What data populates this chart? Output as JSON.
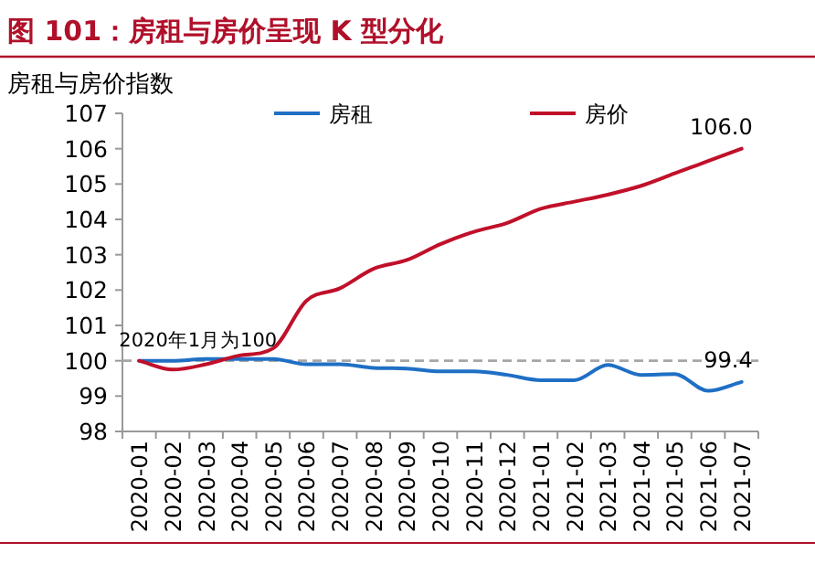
{
  "chart_data": {
    "type": "line",
    "title": "图 101：房租与房价呈现 K 型分化",
    "ylabel": "房租与房价指数",
    "categories": [
      "2020-01",
      "2020-02",
      "2020-03",
      "2020-04",
      "2020-05",
      "2020-06",
      "2020-07",
      "2020-08",
      "2020-09",
      "2020-10",
      "2020-11",
      "2020-12",
      "2021-01",
      "2021-02",
      "2021-03",
      "2021-04",
      "2021-05",
      "2021-06",
      "2021-07"
    ],
    "series": [
      {
        "name": "房租",
        "color": "#1f6fc5",
        "values": [
          100,
          100,
          100.05,
          100.05,
          100.05,
          99.9,
          99.9,
          99.8,
          99.78,
          99.7,
          99.7,
          99.6,
          99.45,
          99.45,
          99.88,
          99.6,
          99.62,
          99.15,
          99.4
        ]
      },
      {
        "name": "房价",
        "color": "#c0102a",
        "values": [
          100,
          99.75,
          99.9,
          100.15,
          100.35,
          101.7,
          102.05,
          102.6,
          102.85,
          103.3,
          103.65,
          103.9,
          104.3,
          104.5,
          104.7,
          104.95,
          105.3,
          105.65,
          106.0
        ]
      }
    ],
    "ylim": [
      98,
      107
    ],
    "yticks": [
      98,
      99,
      100,
      101,
      102,
      103,
      104,
      105,
      106,
      107
    ],
    "ref_lines": [
      {
        "axis": "y",
        "value": 100,
        "color": "#a6a6a6",
        "line_style": "dashed"
      }
    ],
    "annotations": [
      {
        "text": "2020年1月为100",
        "x": "2020-01",
        "y": 100
      },
      {
        "text": "106.0",
        "x": "2021-07",
        "y": 106.0
      },
      {
        "text": "99.4",
        "x": "2021-07",
        "y": 99.4
      }
    ],
    "legend": "top",
    "grid": false,
    "marker": "none",
    "line_style": "solid"
  }
}
